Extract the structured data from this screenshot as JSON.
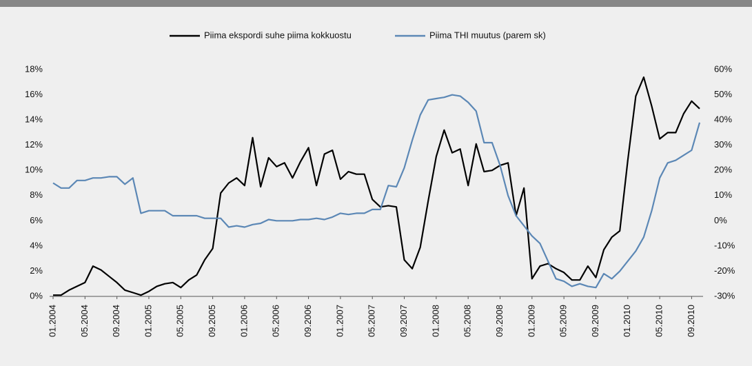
{
  "chart_data": {
    "type": "line",
    "categories": [
      "01.2004",
      null,
      null,
      null,
      "05.2004",
      null,
      null,
      null,
      "09.2004",
      null,
      null,
      null,
      "01.2005",
      null,
      null,
      null,
      "05.2005",
      null,
      null,
      null,
      "09.2005",
      null,
      null,
      null,
      "01.2006",
      null,
      null,
      null,
      "05.2006",
      null,
      null,
      null,
      "09.2006",
      null,
      null,
      null,
      "01.2007",
      null,
      null,
      null,
      "05.2007",
      null,
      null,
      null,
      "09.2007",
      null,
      null,
      null,
      "01.2008",
      null,
      null,
      null,
      "05.2008",
      null,
      null,
      null,
      "09.2008",
      null,
      null,
      null,
      "01.2009",
      null,
      null,
      null,
      "05.2009",
      null,
      null,
      null,
      "09.2009",
      null,
      null,
      null,
      "01.2010",
      null,
      null,
      null,
      "05.2010",
      null,
      null,
      null,
      "09.2010",
      null
    ],
    "series": [
      {
        "name": "Piima ekspordi suhe piima kokkuostu",
        "color": "#000000",
        "values": [
          0.1,
          0.1,
          0.5,
          0.8,
          1.1,
          2.4,
          2.1,
          1.6,
          1.1,
          0.5,
          0.3,
          0.1,
          0.4,
          0.8,
          1.0,
          1.1,
          0.7,
          1.3,
          1.7,
          2.9,
          3.8,
          8.2,
          9.0,
          9.4,
          8.8,
          12.6,
          8.7,
          11.0,
          10.3,
          10.6,
          9.4,
          10.7,
          11.8,
          8.8,
          11.3,
          11.6,
          9.3,
          9.9,
          9.7,
          9.7,
          7.7,
          7.1,
          7.2,
          7.1,
          2.9,
          2.2,
          3.9,
          7.6,
          11.1,
          13.2,
          11.4,
          11.7,
          8.8,
          12.1,
          9.9,
          10.0,
          10.4,
          10.6,
          6.4,
          8.6,
          1.4,
          2.4,
          2.6,
          2.2,
          1.9,
          1.3,
          1.3,
          2.4,
          1.5,
          3.7,
          4.7,
          5.2,
          10.8,
          15.9,
          17.4,
          15.1,
          12.5,
          13.0,
          13.0,
          14.5,
          15.5,
          14.9
        ]
      },
      {
        "name": "Piima THI muutus (parem sk)",
        "color": "#5b87b5",
        "axis": "y2",
        "values": [
          15,
          13,
          13,
          16,
          16,
          17,
          17,
          17.5,
          17.5,
          14.5,
          17,
          3,
          4,
          4,
          4,
          2,
          2,
          2,
          2,
          1,
          1,
          1,
          -2.5,
          -2,
          -2.5,
          -1.5,
          -1,
          0.5,
          0,
          0,
          0,
          0.5,
          0.5,
          1,
          0.5,
          1.5,
          3,
          2.5,
          3,
          3,
          4.5,
          4.5,
          14,
          13.5,
          21,
          32,
          42,
          48,
          48.5,
          49,
          50,
          49.5,
          47,
          43.5,
          31,
          31,
          22,
          10,
          2,
          -2,
          -6,
          -9,
          -16,
          -23,
          -24,
          -26,
          -25,
          -26,
          -26.5,
          -21,
          -23,
          -20,
          -16,
          -12,
          -6.5,
          4,
          17,
          23,
          24,
          26,
          28,
          39
        ]
      }
    ],
    "ylim": [
      0,
      18
    ],
    "yticks": [
      {
        "value": 0,
        "label": "0%"
      },
      {
        "value": 2,
        "label": "2%"
      },
      {
        "value": 4,
        "label": "4%"
      },
      {
        "value": 6,
        "label": "6%"
      },
      {
        "value": 8,
        "label": "8%"
      },
      {
        "value": 10,
        "label": "10%"
      },
      {
        "value": 12,
        "label": "12%"
      },
      {
        "value": 14,
        "label": "14%"
      },
      {
        "value": 16,
        "label": "16%"
      },
      {
        "value": 18,
        "label": "18%"
      }
    ],
    "y2lim": [
      -30,
      60
    ],
    "y2ticks": [
      {
        "value": -30,
        "label": "-30%"
      },
      {
        "value": -20,
        "label": "-20%"
      },
      {
        "value": -10,
        "label": "-10%"
      },
      {
        "value": 0,
        "label": "0%"
      },
      {
        "value": 10,
        "label": "10%"
      },
      {
        "value": 20,
        "label": "20%"
      },
      {
        "value": 30,
        "label": "30%"
      },
      {
        "value": 40,
        "label": "40%"
      },
      {
        "value": 50,
        "label": "50%"
      },
      {
        "value": 60,
        "label": "60%"
      }
    ],
    "legend": "top"
  }
}
